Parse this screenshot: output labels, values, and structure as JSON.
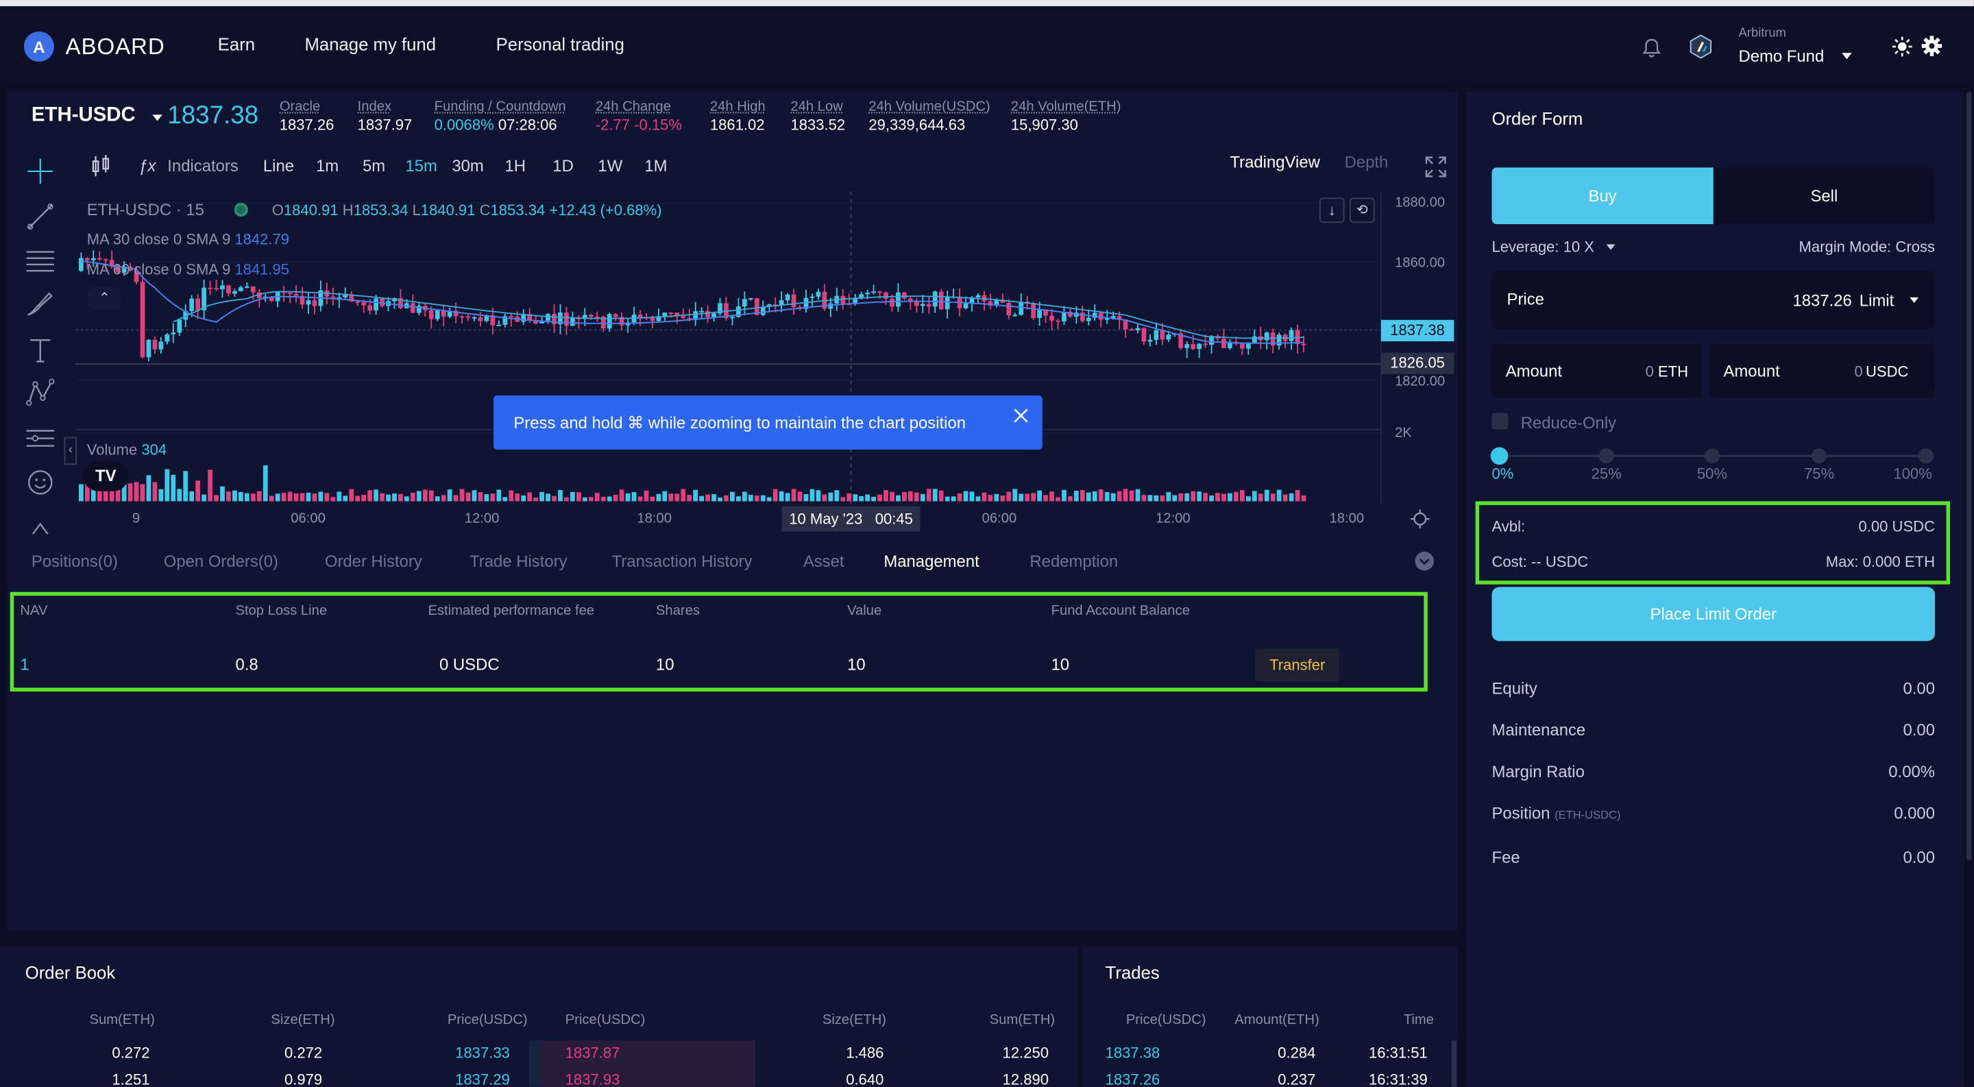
{
  "nav": {
    "logo_text": "ABOARD",
    "links": [
      "Earn",
      "Manage my fund",
      "Personal trading"
    ],
    "network": "Arbitrum",
    "fund": "Demo Fund"
  },
  "ticker": {
    "pair": "ETH-USDC",
    "price": "1837.38",
    "stats": [
      {
        "k": "Oracle",
        "v": "1837.26"
      },
      {
        "k": "Index",
        "v": "1837.97"
      },
      {
        "k": "Funding / Countdown",
        "v": "0.0068%",
        "v2": "07:28:06"
      },
      {
        "k": "24h Change",
        "v": "-2.77",
        "v2": "-0.15%"
      },
      {
        "k": "24h High",
        "v": "1861.02"
      },
      {
        "k": "24h Low",
        "v": "1833.52"
      },
      {
        "k": "24h Volume(USDC)",
        "v": "29,339,644.63"
      },
      {
        "k": "24h Volume(ETH)",
        "v": "15,907.30"
      }
    ]
  },
  "chart_toolbar": {
    "indicators": "Indicators",
    "line": "Line",
    "intervals": [
      "1m",
      "5m",
      "15m",
      "30m",
      "1H",
      "1D",
      "1W",
      "1M"
    ],
    "active_interval": "15m",
    "view_tabs": [
      "TradingView",
      "Depth"
    ]
  },
  "chart": {
    "title": "ETH-USDC · 15",
    "o_label": "O",
    "o": "1840.91",
    "h_label": "H",
    "h": "1853.34",
    "l_label": "L",
    "l": "1840.91",
    "c_label": "C",
    "c": "1853.34",
    "change": "+12.43 (+0.68%)",
    "ma1": "MA 30 close 0 SMA 9",
    "ma1_val": "1842.79",
    "ma2": "MA 60 close 0 SMA 9",
    "ma2_val": "1841.95",
    "y_ticks": [
      "1880.00",
      "1860.00",
      "1820.00",
      "2K"
    ],
    "price_tag": "1837.38",
    "cursor_tag": "1826.05",
    "volume_label": "Volume",
    "volume_val": "304",
    "x_ticks": [
      "9",
      "06:00",
      "12:00",
      "18:00",
      "06:00",
      "12:00",
      "18:00"
    ],
    "cursor_date": "10 May '23   00:45",
    "toast": "Press and hold ⌘ while zooming to maintain the chart position",
    "colors": {
      "up": "#3ec8e8",
      "down": "#e0407e"
    }
  },
  "bottom_tabs": [
    "Positions(0)",
    "Open Orders(0)",
    "Order History",
    "Trade History",
    "Transaction History",
    "Asset",
    "Management",
    "Redemption"
  ],
  "active_bottom_tab": "Management",
  "management": {
    "headers": [
      "NAV",
      "Stop Loss Line",
      "Estimated performance fee",
      "Shares",
      "Value",
      "Fund Account Balance"
    ],
    "row": [
      "1",
      "0.8",
      "0 USDC",
      "10",
      "10",
      "10"
    ],
    "transfer": "Transfer"
  },
  "order_form": {
    "title": "Order Form",
    "buy": "Buy",
    "sell": "Sell",
    "leverage": "Leverage: 10 X",
    "margin_mode": "Margin Mode: Cross",
    "price_label": "Price",
    "price_value": "1837.26",
    "order_type": "Limit",
    "amount_label": "Amount",
    "amount_eth": "0",
    "amount_eth_unit": "ETH",
    "amount_usdc": "0",
    "amount_usdc_unit": "USDC",
    "reduce_only": "Reduce-Only",
    "slider_marks": [
      "0%",
      "25%",
      "50%",
      "75%",
      "100%"
    ],
    "slider_value": 0,
    "avbl_label": "Avbl:",
    "avbl_value": "0.00 USDC",
    "cost": "Cost: -- USDC",
    "max": "Max: 0.000 ETH",
    "place_button": "Place Limit Order",
    "account": [
      {
        "k": "Equity",
        "v": "0.00"
      },
      {
        "k": "Maintenance",
        "v": "0.00"
      },
      {
        "k": "Margin Ratio",
        "v": "0.00%"
      },
      {
        "k": "Position",
        "k2": "(ETH-USDC)",
        "v": "0.000"
      },
      {
        "k": "Fee",
        "v": "0.00"
      }
    ]
  },
  "order_book": {
    "title": "Order Book",
    "headers": [
      "Sum(ETH)",
      "Size(ETH)",
      "Price(USDC)",
      "Price(USDC)",
      "Size(ETH)",
      "Sum(ETH)"
    ],
    "rows": [
      [
        "0.272",
        "0.272",
        "1837.33",
        "1837.87",
        "1.486",
        "12.250"
      ],
      [
        "1.251",
        "0.979",
        "1837.29",
        "1837.93",
        "0.640",
        "12.890"
      ]
    ]
  },
  "trades": {
    "title": "Trades",
    "headers": [
      "Price(USDC)",
      "Amount(ETH)",
      "Time"
    ],
    "rows": [
      [
        "1837.38",
        "0.284",
        "16:31:51"
      ],
      [
        "1837.26",
        "0.237",
        "16:31:39"
      ]
    ]
  }
}
